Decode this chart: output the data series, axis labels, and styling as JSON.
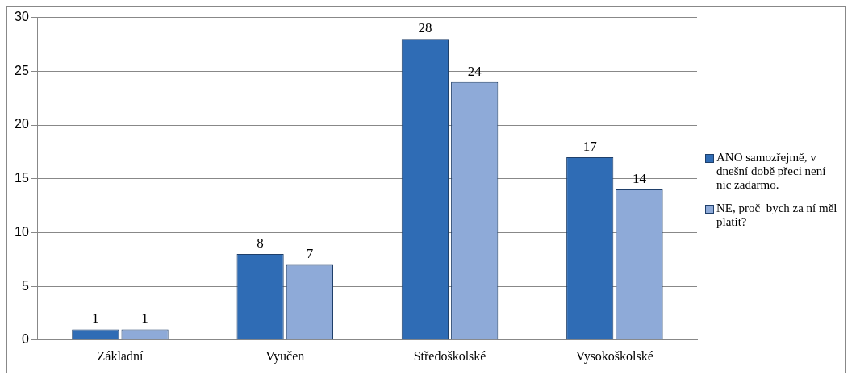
{
  "chart_data": {
    "type": "bar",
    "categories": [
      "Základní",
      "Vyučen",
      "Středoškolské",
      "Vysokoškolské"
    ],
    "series": [
      {
        "name": "ANO samozřejmě, v dnešní době přeci není nic zadarmo.",
        "color": "#2f6cb5",
        "values": [
          1,
          8,
          28,
          17
        ]
      },
      {
        "name": "NE, proč  bych za ní měl platit?",
        "color": "#8eaad8",
        "values": [
          1,
          7,
          24,
          14
        ]
      }
    ],
    "ylim": [
      0,
      30
    ],
    "yticks": [
      0,
      5,
      10,
      15,
      20,
      25,
      30
    ],
    "grid": "y",
    "legend": "right",
    "data_labels": true
  }
}
